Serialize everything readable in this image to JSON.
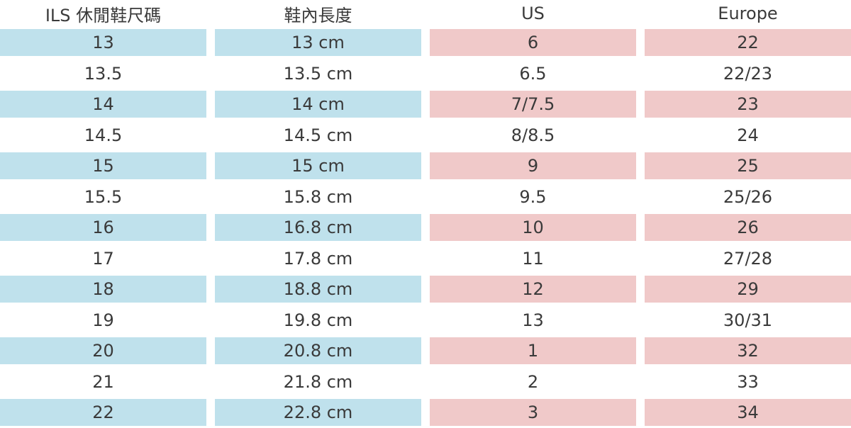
{
  "headers": [
    "ILS 休閒鞋尺碼",
    "鞋內長度",
    "US",
    "Europe"
  ],
  "rows": [
    [
      "13",
      "13 cm",
      "6",
      "22"
    ],
    [
      "13.5",
      "13.5 cm",
      "6.5",
      "22/23"
    ],
    [
      "14",
      "14 cm",
      "7/7.5",
      "23"
    ],
    [
      "14.5",
      "14.5 cm",
      "8/8.5",
      "24"
    ],
    [
      "15",
      "15 cm",
      "9",
      "25"
    ],
    [
      "15.5",
      "15.8 cm",
      "9.5",
      "25/26"
    ],
    [
      "16",
      "16.8 cm",
      "10",
      "26"
    ],
    [
      "17",
      "17.8 cm",
      "11",
      "27/28"
    ],
    [
      "18",
      "18.8 cm",
      "12",
      "29"
    ],
    [
      "19",
      "19.8 cm",
      "13",
      "30/31"
    ],
    [
      "20",
      "20.8 cm",
      "1",
      "32"
    ],
    [
      "21",
      "21.8 cm",
      "2",
      "33"
    ],
    [
      "22",
      "22.8 cm",
      "3",
      "34"
    ]
  ],
  "colors": {
    "blue_band": "#bfe1ec",
    "pink_band": "#f0c9c9",
    "text": "#3a3a3a"
  }
}
